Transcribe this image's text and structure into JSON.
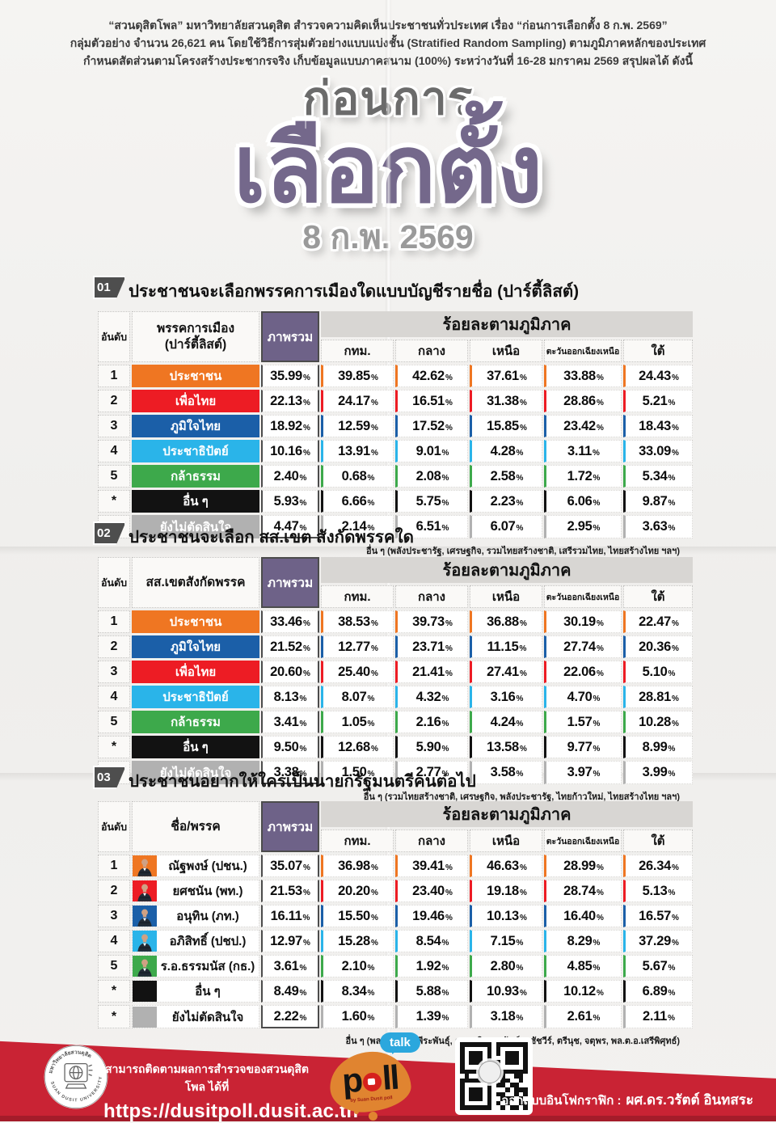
{
  "intro": {
    "line1": "“สวนดุสิตโพล” มหาวิทยาลัยสวนดุสิต สำรวจความคิดเห็นประชาชนทั่วประเทศ เรื่อง “ก่อนการเลือกตั้ง 8 ก.พ. 2569”",
    "line2": "กลุ่มตัวอย่าง จำนวน 26,621 คน โดยใช้วิธีการสุ่มตัวอย่างแบบแบ่งชั้น (Stratified Random Sampling) ตามภูมิภาคหลักของประเทศ",
    "line3": "กำหนดสัดส่วนตามโครงสร้างประชากรจริง เก็บข้อมูลแบบภาคสนาม (100%) ระหว่างวันที่ 16-28 มกราคม 2569 สรุปผลได้ ดังนี้"
  },
  "title": {
    "small": "ก่อนการ",
    "big": "เลือกตั้ง",
    "date": "8 ก.พ. 2569"
  },
  "colors": {
    "accent_purple": "#6e6288",
    "title_purple": "#74688b",
    "footer_red": "#c92334",
    "orange": "#ef7622",
    "red": "#ed1c24",
    "blue": "#1b5fa8",
    "cyan": "#2ab4e9",
    "green": "#3da94b",
    "black": "#121212",
    "gray": "#b1b1b1"
  },
  "tables": [
    {
      "number": "01",
      "title": "ประชาชนจะเลือกพรรคการเมืองใดแบบบัญชีรายชื่อ (ปาร์ตี้ลิสต์)",
      "col_rank": "อันดับ",
      "col_name": "พรรคการเมือง\n(ปาร์ตี้ลิสต์)",
      "col_overall": "ภาพรวม",
      "region_header": "ร้อยละตามภูมิภาค",
      "regions": [
        "กทม.",
        "กลาง",
        "เหนือ",
        "ตะวันออกเฉียงเหนือ",
        "ใต้"
      ],
      "photos": false,
      "rows": [
        {
          "rank": "1",
          "name": "ประชาชน",
          "color": "#ef7622",
          "values": [
            "35.99",
            "39.85",
            "42.62",
            "37.61",
            "33.88",
            "24.43"
          ]
        },
        {
          "rank": "2",
          "name": "เพื่อไทย",
          "color": "#ed1c24",
          "values": [
            "22.13",
            "24.17",
            "16.51",
            "31.38",
            "28.86",
            "5.21"
          ]
        },
        {
          "rank": "3",
          "name": "ภูมิใจไทย",
          "color": "#1b5fa8",
          "values": [
            "18.92",
            "12.59",
            "17.52",
            "15.85",
            "23.42",
            "18.43"
          ]
        },
        {
          "rank": "4",
          "name": "ประชาธิปัตย์",
          "color": "#2ab4e9",
          "values": [
            "10.16",
            "13.91",
            "9.01",
            "4.28",
            "3.11",
            "33.09"
          ]
        },
        {
          "rank": "5",
          "name": "กล้าธรรม",
          "color": "#3da94b",
          "values": [
            "2.40",
            "0.68",
            "2.08",
            "2.58",
            "1.72",
            "5.34"
          ]
        },
        {
          "rank": "*",
          "name": "อื่น ๆ",
          "color": "#121212",
          "values": [
            "5.93",
            "6.66",
            "5.75",
            "2.23",
            "6.06",
            "9.87"
          ]
        },
        {
          "rank": "*",
          "name": "ยังไม่ตัดสินใจ",
          "color": "#b1b1b1",
          "values": [
            "4.47",
            "2.14",
            "6.51",
            "6.07",
            "2.95",
            "3.63"
          ]
        }
      ],
      "footnote": "อื่น ๆ (พลังประชารัฐ, เศรษฐกิจ, รวมไทยสร้างชาติ, เสรีรวมไทย, ไทยสร้างไทย ฯลฯ)"
    },
    {
      "number": "02",
      "title": "ประชาชนจะเลือก สส.เขต สังกัดพรรคใด",
      "col_rank": "อันดับ",
      "col_name": "สส.เขตสังกัดพรรค",
      "col_overall": "ภาพรวม",
      "region_header": "ร้อยละตามภูมิภาค",
      "regions": [
        "กทม.",
        "กลาง",
        "เหนือ",
        "ตะวันออกเฉียงเหนือ",
        "ใต้"
      ],
      "photos": false,
      "rows": [
        {
          "rank": "1",
          "name": "ประชาชน",
          "color": "#ef7622",
          "values": [
            "33.46",
            "38.53",
            "39.73",
            "36.88",
            "30.19",
            "22.47"
          ]
        },
        {
          "rank": "2",
          "name": "ภูมิใจไทย",
          "color": "#1b5fa8",
          "values": [
            "21.52",
            "12.77",
            "23.71",
            "11.15",
            "27.74",
            "20.36"
          ]
        },
        {
          "rank": "3",
          "name": "เพื่อไทย",
          "color": "#ed1c24",
          "values": [
            "20.60",
            "25.40",
            "21.41",
            "27.41",
            "22.06",
            "5.10"
          ]
        },
        {
          "rank": "4",
          "name": "ประชาธิปัตย์",
          "color": "#2ab4e9",
          "values": [
            "8.13",
            "8.07",
            "4.32",
            "3.16",
            "4.70",
            "28.81"
          ]
        },
        {
          "rank": "5",
          "name": "กล้าธรรม",
          "color": "#3da94b",
          "values": [
            "3.41",
            "1.05",
            "2.16",
            "4.24",
            "1.57",
            "10.28"
          ]
        },
        {
          "rank": "*",
          "name": "อื่น ๆ",
          "color": "#121212",
          "values": [
            "9.50",
            "12.68",
            "5.90",
            "13.58",
            "9.77",
            "8.99"
          ]
        },
        {
          "rank": "*",
          "name": "ยังไม่ตัดสินใจ",
          "color": "#b1b1b1",
          "values": [
            "3.38",
            "1.50",
            "2.77",
            "3.58",
            "3.97",
            "3.99"
          ]
        }
      ],
      "footnote": "อื่น ๆ (รวมไทยสร้างชาติ, เศรษฐกิจ, พลังประชารัฐ, ไทยก้าวใหม่, ไทยสร้างไทย ฯลฯ)"
    },
    {
      "number": "03",
      "title": "ประชาชนอยากให้ใครเป็นนายกรัฐมนตรีคนต่อไป",
      "col_rank": "อันดับ",
      "col_name": "ชื่อ/พรรค",
      "col_overall": "ภาพรวม",
      "region_header": "ร้อยละตามภูมิภาค",
      "regions": [
        "กทม.",
        "กลาง",
        "เหนือ",
        "ตะวันออกเฉียงเหนือ",
        "ใต้"
      ],
      "photos": true,
      "rows": [
        {
          "rank": "1",
          "name": "ณัฐพงษ์ (ปชน.)",
          "color": "#ef7622",
          "photo": true,
          "values": [
            "35.07",
            "36.98",
            "39.41",
            "46.63",
            "28.99",
            "26.34"
          ]
        },
        {
          "rank": "2",
          "name": "ยศชนัน (พท.)",
          "color": "#ed1c24",
          "photo": true,
          "values": [
            "21.53",
            "20.20",
            "23.40",
            "19.18",
            "28.74",
            "5.13"
          ]
        },
        {
          "rank": "3",
          "name": "อนุทิน (ภท.)",
          "color": "#1b5fa8",
          "photo": true,
          "values": [
            "16.11",
            "15.50",
            "19.46",
            "10.13",
            "16.40",
            "16.57"
          ]
        },
        {
          "rank": "4",
          "name": "อภิสิทธิ์ (ปชป.)",
          "color": "#2ab4e9",
          "photo": true,
          "values": [
            "12.97",
            "15.28",
            "8.54",
            "7.15",
            "8.29",
            "37.29"
          ]
        },
        {
          "rank": "5",
          "name": "ร.อ.ธรรมนัส (กธ.)",
          "color": "#3da94b",
          "photo": true,
          "values": [
            "3.61",
            "2.10",
            "1.92",
            "2.80",
            "4.85",
            "5.67"
          ]
        },
        {
          "rank": "*",
          "name": "อื่น ๆ",
          "color": "#121212",
          "photo": false,
          "values": [
            "8.49",
            "8.34",
            "5.88",
            "10.93",
            "10.12",
            "6.89"
          ]
        },
        {
          "rank": "*",
          "name": "ยังไม่ตัดสินใจ",
          "color": "#b1b1b1",
          "photo": false,
          "values": [
            "2.22",
            "1.60",
            "1.39",
            "3.18",
            "2.61",
            "2.11"
          ]
        }
      ],
      "footnote": "อื่น ๆ (พลเอก รังษี, พีระพันธุ์, คุณหญิงสุดารัตน์, สุชัชวีร์, ตรีนุช, จตุพร, พล.ต.อ.เสรีพิศุทธ์)"
    }
  ],
  "footer": {
    "seal_top": "มหาวิทยาลัยสวนดุสิต",
    "seal_bottom": "SUAN DUSIT UNIVERSITY",
    "follow": "สามารถติดตามผลการสำรวจของสวนดุสิตโพล ได้ที่",
    "url": "https://dusitpoll.dusit.ac.th",
    "logo_p": "p",
    "logo_ll": "ll",
    "logo_tag": "by Suan Dusit poll",
    "talk": "talk",
    "credit_label": "ออกแบบอินโฟกราฟิก :",
    "credit_name": "ผศ.ดร.วรัตต์ อินทสระ"
  },
  "chart_data": [
    {
      "type": "table",
      "title": "ประชาชนจะเลือกพรรคการเมืองใดแบบบัญชีรายชื่อ (ปาร์ตี้ลิสต์)",
      "columns": [
        "อันดับ",
        "พรรคการเมือง (ปาร์ตี้ลิสต์)",
        "ภาพรวม",
        "กทม.",
        "กลาง",
        "เหนือ",
        "ตะวันออกเฉียงเหนือ",
        "ใต้"
      ],
      "unit": "%",
      "rows": [
        [
          "1",
          "ประชาชน",
          35.99,
          39.85,
          42.62,
          37.61,
          33.88,
          24.43
        ],
        [
          "2",
          "เพื่อไทย",
          22.13,
          24.17,
          16.51,
          31.38,
          28.86,
          5.21
        ],
        [
          "3",
          "ภูมิใจไทย",
          18.92,
          12.59,
          17.52,
          15.85,
          23.42,
          18.43
        ],
        [
          "4",
          "ประชาธิปัตย์",
          10.16,
          13.91,
          9.01,
          4.28,
          3.11,
          33.09
        ],
        [
          "5",
          "กล้าธรรม",
          2.4,
          0.68,
          2.08,
          2.58,
          1.72,
          5.34
        ],
        [
          "*",
          "อื่น ๆ",
          5.93,
          6.66,
          5.75,
          2.23,
          6.06,
          9.87
        ],
        [
          "*",
          "ยังไม่ตัดสินใจ",
          4.47,
          2.14,
          6.51,
          6.07,
          2.95,
          3.63
        ]
      ]
    },
    {
      "type": "table",
      "title": "ประชาชนจะเลือก สส.เขต สังกัดพรรคใด",
      "columns": [
        "อันดับ",
        "สส.เขตสังกัดพรรค",
        "ภาพรวม",
        "กทม.",
        "กลาง",
        "เหนือ",
        "ตะวันออกเฉียงเหนือ",
        "ใต้"
      ],
      "unit": "%",
      "rows": [
        [
          "1",
          "ประชาชน",
          33.46,
          38.53,
          39.73,
          36.88,
          30.19,
          22.47
        ],
        [
          "2",
          "ภูมิใจไทย",
          21.52,
          12.77,
          23.71,
          11.15,
          27.74,
          20.36
        ],
        [
          "3",
          "เพื่อไทย",
          20.6,
          25.4,
          21.41,
          27.41,
          22.06,
          5.1
        ],
        [
          "4",
          "ประชาธิปัตย์",
          8.13,
          8.07,
          4.32,
          3.16,
          4.7,
          28.81
        ],
        [
          "5",
          "กล้าธรรม",
          3.41,
          1.05,
          2.16,
          4.24,
          1.57,
          10.28
        ],
        [
          "*",
          "อื่น ๆ",
          9.5,
          12.68,
          5.9,
          13.58,
          9.77,
          8.99
        ],
        [
          "*",
          "ยังไม่ตัดสินใจ",
          3.38,
          1.5,
          2.77,
          3.58,
          3.97,
          3.99
        ]
      ]
    },
    {
      "type": "table",
      "title": "ประชาชนอยากให้ใครเป็นนายกรัฐมนตรีคนต่อไป",
      "columns": [
        "อันดับ",
        "ชื่อ/พรรค",
        "ภาพรวม",
        "กทม.",
        "กลาง",
        "เหนือ",
        "ตะวันออกเฉียงเหนือ",
        "ใต้"
      ],
      "unit": "%",
      "rows": [
        [
          "1",
          "ณัฐพงษ์ (ปชน.)",
          35.07,
          36.98,
          39.41,
          46.63,
          28.99,
          26.34
        ],
        [
          "2",
          "ยศชนัน (พท.)",
          21.53,
          20.2,
          23.4,
          19.18,
          28.74,
          5.13
        ],
        [
          "3",
          "อนุทิน (ภท.)",
          16.11,
          15.5,
          19.46,
          10.13,
          16.4,
          16.57
        ],
        [
          "4",
          "อภิสิทธิ์ (ปชป.)",
          12.97,
          15.28,
          8.54,
          7.15,
          8.29,
          37.29
        ],
        [
          "5",
          "ร.อ.ธรรมนัส (กธ.)",
          3.61,
          2.1,
          1.92,
          2.8,
          4.85,
          5.67
        ],
        [
          "*",
          "อื่น ๆ",
          8.49,
          8.34,
          5.88,
          10.93,
          10.12,
          6.89
        ],
        [
          "*",
          "ยังไม่ตัดสินใจ",
          2.22,
          1.6,
          1.39,
          3.18,
          2.61,
          2.11
        ]
      ]
    }
  ]
}
